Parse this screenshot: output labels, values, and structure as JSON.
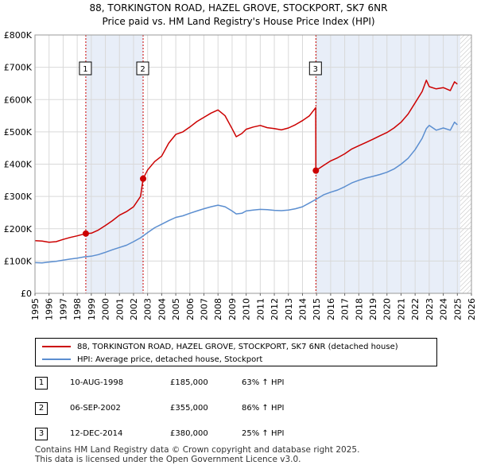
{
  "chart_data": {
    "type": "line",
    "title": "88, TORKINGTON ROAD, HAZEL GROVE, STOCKPORT, SK7 6NR",
    "subtitle": "Price paid vs. HM Land Registry's House Price Index (HPI)",
    "x_ticks": [
      "1995",
      "1996",
      "1997",
      "1998",
      "1999",
      "2000",
      "2001",
      "2002",
      "2003",
      "2004",
      "2005",
      "2006",
      "2007",
      "2008",
      "2009",
      "2010",
      "2011",
      "2012",
      "2013",
      "2014",
      "2015",
      "2016",
      "2017",
      "2018",
      "2019",
      "2020",
      "2021",
      "2022",
      "2023",
      "2024",
      "2025",
      "2026"
    ],
    "y_ticks": [
      "£0",
      "£100K",
      "£200K",
      "£300K",
      "£400K",
      "£500K",
      "£600K",
      "£700K",
      "£800K"
    ],
    "xlim": [
      1995,
      2026
    ],
    "ylim": [
      0,
      800000
    ],
    "colors": {
      "property": "#cc0000",
      "hpi": "#5b8ed0",
      "shade": "#e8eef8",
      "marker_line": "#cc0000",
      "hatch": "#bbbbbb"
    },
    "shaded_ranges": [
      [
        1998.61,
        2002.68
      ],
      [
        2014.95,
        2025.2
      ]
    ],
    "forecast_start": 2025.2,
    "series": [
      {
        "name": "88, TORKINGTON ROAD, HAZEL GROVE, STOCKPORT, SK7 6NR (detached house)",
        "x": [
          1995.0,
          1995.5,
          1996.0,
          1996.5,
          1997.0,
          1997.5,
          1998.0,
          1998.61,
          1999.0,
          1999.5,
          2000.0,
          2000.5,
          2001.0,
          2001.5,
          2002.0,
          2002.5,
          2002.68,
          2003.0,
          2003.5,
          2004.0,
          2004.5,
          2005.0,
          2005.5,
          2006.0,
          2006.5,
          2007.0,
          2007.5,
          2008.0,
          2008.5,
          2009.0,
          2009.3,
          2009.7,
          2010.0,
          2010.5,
          2011.0,
          2011.5,
          2012.0,
          2012.5,
          2013.0,
          2013.5,
          2014.0,
          2014.5,
          2014.94,
          2014.95,
          2015.5,
          2016.0,
          2016.5,
          2017.0,
          2017.5,
          2018.0,
          2018.5,
          2019.0,
          2019.5,
          2020.0,
          2020.5,
          2021.0,
          2021.5,
          2022.0,
          2022.5,
          2022.8,
          2023.0,
          2023.5,
          2024.0,
          2024.5,
          2024.8,
          2025.0
        ],
        "values": [
          163000,
          162000,
          158000,
          160000,
          167000,
          173000,
          178000,
          185000,
          186000,
          196000,
          210000,
          225000,
          242000,
          253000,
          268000,
          300000,
          355000,
          382000,
          408000,
          425000,
          465000,
          492000,
          500000,
          515000,
          532000,
          545000,
          558000,
          568000,
          550000,
          510000,
          485000,
          495000,
          508000,
          515000,
          520000,
          513000,
          510000,
          506000,
          512000,
          522000,
          535000,
          550000,
          575000,
          380000,
          396000,
          410000,
          420000,
          432000,
          447000,
          457000,
          467000,
          477000,
          488000,
          498000,
          512000,
          530000,
          555000,
          590000,
          625000,
          660000,
          640000,
          633000,
          637000,
          628000,
          655000,
          648000
        ]
      },
      {
        "name": "HPI: Average price, detached house, Stockport",
        "x": [
          1995.0,
          1995.5,
          1996.0,
          1996.5,
          1997.0,
          1997.5,
          1998.0,
          1998.5,
          1999.0,
          1999.5,
          2000.0,
          2000.5,
          2001.0,
          2001.5,
          2002.0,
          2002.5,
          2003.0,
          2003.5,
          2004.0,
          2004.5,
          2005.0,
          2005.5,
          2006.0,
          2006.5,
          2007.0,
          2007.5,
          2008.0,
          2008.5,
          2009.0,
          2009.3,
          2009.7,
          2010.0,
          2010.5,
          2011.0,
          2011.5,
          2012.0,
          2012.5,
          2013.0,
          2013.5,
          2014.0,
          2014.5,
          2015.0,
          2015.5,
          2016.0,
          2016.5,
          2017.0,
          2017.5,
          2018.0,
          2018.5,
          2019.0,
          2019.5,
          2020.0,
          2020.5,
          2021.0,
          2021.5,
          2022.0,
          2022.5,
          2022.8,
          2023.0,
          2023.5,
          2024.0,
          2024.5,
          2024.8,
          2025.0
        ],
        "values": [
          95000,
          94000,
          97000,
          99000,
          103000,
          106000,
          109000,
          113000,
          115000,
          120000,
          127000,
          135000,
          142000,
          149000,
          160000,
          172000,
          188000,
          203000,
          214000,
          225000,
          235000,
          240000,
          248000,
          255000,
          262000,
          268000,
          273000,
          268000,
          255000,
          246000,
          248000,
          255000,
          258000,
          260000,
          259000,
          257000,
          256000,
          258000,
          262000,
          268000,
          280000,
          292000,
          305000,
          313000,
          320000,
          330000,
          342000,
          350000,
          357000,
          362000,
          368000,
          375000,
          385000,
          400000,
          418000,
          445000,
          480000,
          510000,
          520000,
          505000,
          512000,
          505000,
          530000,
          522000
        ]
      }
    ],
    "markers": [
      {
        "label": "1",
        "x": 1998.61,
        "value": 185000
      },
      {
        "label": "2",
        "x": 2002.68,
        "value": 355000
      },
      {
        "label": "3",
        "x": 2014.95,
        "value": 380000
      }
    ]
  },
  "legend": {
    "property_label": "88, TORKINGTON ROAD, HAZEL GROVE, STOCKPORT, SK7 6NR (detached house)",
    "hpi_label": "HPI: Average price, detached house, Stockport"
  },
  "sales": [
    {
      "num": "1",
      "date": "10-AUG-1998",
      "price": "£185,000",
      "pct": "63% ↑ HPI"
    },
    {
      "num": "2",
      "date": "06-SEP-2002",
      "price": "£355,000",
      "pct": "86% ↑ HPI"
    },
    {
      "num": "3",
      "date": "12-DEC-2014",
      "price": "£380,000",
      "pct": "25% ↑ HPI"
    }
  ],
  "footer": {
    "line1": "Contains HM Land Registry data © Crown copyright and database right 2025.",
    "line2": "This data is licensed under the Open Government Licence v3.0."
  }
}
